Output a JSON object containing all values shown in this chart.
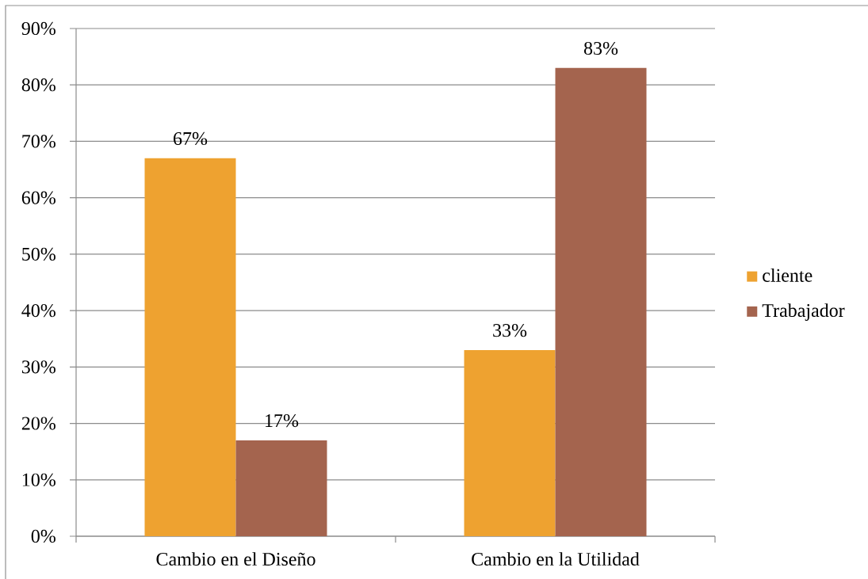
{
  "chart_data": {
    "type": "bar",
    "categories": [
      "Cambio en el Diseño",
      "Cambio en la Utilidad"
    ],
    "series": [
      {
        "name": "cliente",
        "color": "#eea230",
        "values": [
          67,
          33
        ],
        "value_labels": [
          "67%",
          "33%"
        ]
      },
      {
        "name": "Trabajador",
        "color": "#a4644e",
        "values": [
          17,
          83
        ],
        "value_labels": [
          "17%",
          "83%"
        ]
      }
    ],
    "ylim": [
      0,
      90
    ],
    "yticks": [
      {
        "value": 0,
        "label": "0%"
      },
      {
        "value": 10,
        "label": "10%"
      },
      {
        "value": 20,
        "label": "20%"
      },
      {
        "value": 30,
        "label": "30%"
      },
      {
        "value": 40,
        "label": "40%"
      },
      {
        "value": 50,
        "label": "50%"
      },
      {
        "value": 60,
        "label": "60%"
      },
      {
        "value": 70,
        "label": "70%"
      },
      {
        "value": 80,
        "label": "80%"
      },
      {
        "value": 90,
        "label": "90%"
      }
    ],
    "grid": "y",
    "legend": "right"
  }
}
